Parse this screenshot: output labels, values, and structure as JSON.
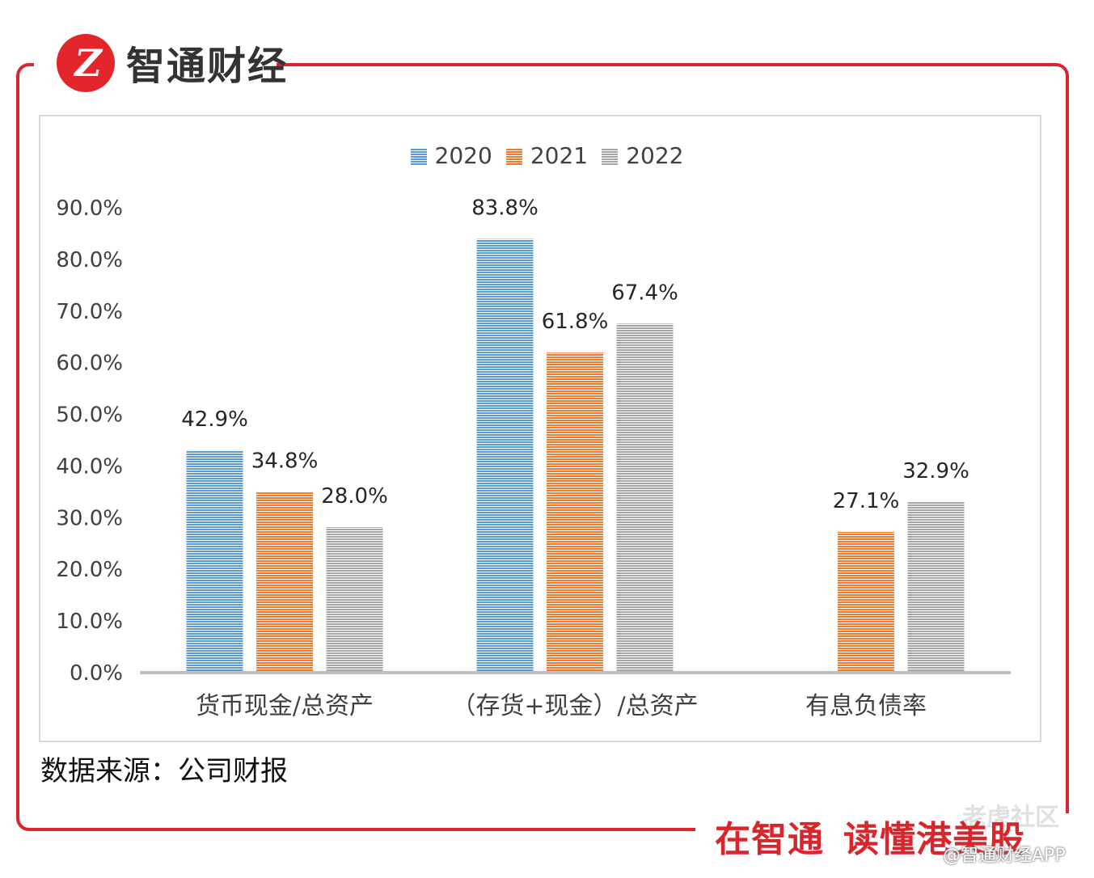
{
  "brand": {
    "logo_text": "Z",
    "name": "智通财经"
  },
  "source_note": "数据来源：公司财报",
  "slogan": {
    "part1": "在智通",
    "part2": "读懂港美股"
  },
  "watermark": {
    "community": "老虎社区",
    "handle": "@智通财经APP"
  },
  "colors": {
    "frame": "#d9262c",
    "s2020": "#5b9bd5",
    "s2021": "#ed7d31",
    "s2022": "#a5a5a5"
  },
  "chart_data": {
    "type": "bar",
    "title": "",
    "categories": [
      "货币现金/总资产",
      "（存货+现金）/总资产",
      "有息负债率"
    ],
    "series": [
      {
        "name": "2020",
        "values": [
          42.9,
          83.8,
          null
        ],
        "labels": [
          "42.9%",
          "83.8%",
          ""
        ]
      },
      {
        "name": "2021",
        "values": [
          34.8,
          61.8,
          27.1
        ],
        "labels": [
          "34.8%",
          "61.8%",
          "27.1%"
        ]
      },
      {
        "name": "2022",
        "values": [
          28.0,
          67.4,
          32.9
        ],
        "labels": [
          "28.0%",
          "67.4%",
          "32.9%"
        ]
      }
    ],
    "ylim": [
      0,
      90
    ],
    "yticks": [
      "0.0%",
      "10.0%",
      "20.0%",
      "30.0%",
      "40.0%",
      "50.0%",
      "60.0%",
      "70.0%",
      "80.0%",
      "90.0%"
    ],
    "xlabel": "",
    "ylabel": "",
    "grid": false,
    "legend": "top-center"
  }
}
